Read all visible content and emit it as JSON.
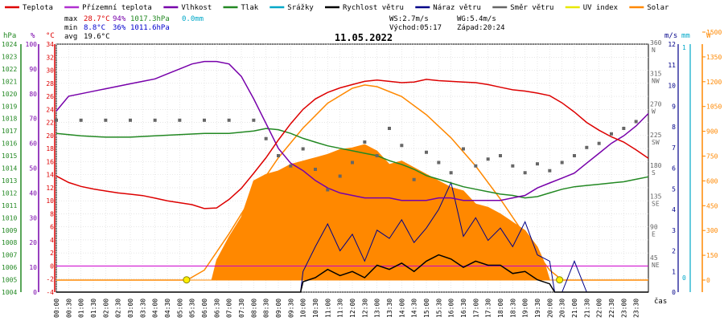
{
  "chart_data": {
    "type": "line",
    "title": "11.05.2022",
    "legend": {
      "placement": "top",
      "entries": [
        {
          "name": "Teplota",
          "color": "#dd0000"
        },
        {
          "name": "Přízemní teplota",
          "color": "#b030d0"
        },
        {
          "name": "Vlhkost",
          "color": "#7700aa"
        },
        {
          "name": "Tlak",
          "color": "#228822"
        },
        {
          "name": "Srážky",
          "color": "#00a8c8"
        },
        {
          "name": "Rychlost větru",
          "color": "#000000"
        },
        {
          "name": "Náraz větru",
          "color": "#000088"
        },
        {
          "name": "Směr větru",
          "color": "#666666"
        },
        {
          "name": "UV index",
          "color": "#e8e800"
        },
        {
          "name": "Solar",
          "color": "#ff8800"
        }
      ]
    },
    "stats": {
      "max_label": "max",
      "min_label": "min",
      "avg_label": "avg",
      "max_temp": "28.7°C",
      "max_hum": "94%",
      "max_press": "1017.3hPa",
      "max_rain": "0.0mm",
      "min_temp": "8.8°C",
      "min_hum": "36%",
      "min_press": "1011.6hPa",
      "avg_temp": "19.6°C",
      "ws": "WS:2.7m/s",
      "wg": "WG:5.4m/s",
      "sunrise": "Východ:05:17",
      "sunset": "Západ:20:24"
    },
    "x_axis": {
      "label": "čas",
      "ticks": [
        "00:00",
        "00:30",
        "01:00",
        "01:30",
        "02:00",
        "02:30",
        "03:00",
        "03:30",
        "04:00",
        "04:30",
        "05:00",
        "05:30",
        "06:00",
        "06:30",
        "07:00",
        "07:30",
        "08:00",
        "08:30",
        "09:00",
        "09:30",
        "10:00",
        "10:30",
        "11:00",
        "11:30",
        "12:00",
        "12:30",
        "13:00",
        "13:30",
        "14:00",
        "14:30",
        "15:00",
        "15:30",
        "16:00",
        "16:30",
        "17:00",
        "17:30",
        "18:00",
        "18:30",
        "19:00",
        "19:30",
        "20:00",
        "20:30",
        "21:00",
        "21:30",
        "22:00",
        "22:30",
        "23:00",
        "23:30"
      ]
    },
    "axes": {
      "pressure": {
        "unit": "hPa",
        "range": [
          1004,
          1024
        ],
        "ticks": [
          "1024",
          "1023",
          "1022",
          "1021",
          "1020",
          "1019",
          "1018",
          "1017",
          "1016",
          "1015",
          "1014",
          "1013",
          "1012",
          "1011",
          "1010",
          "1009",
          "1008",
          "1007",
          "1006",
          "1005",
          "1004"
        ]
      },
      "humidity": {
        "unit": "%",
        "range": [
          0,
          100
        ],
        "ticks": [
          "100",
          "90",
          "80",
          "70",
          "60",
          "50",
          "40",
          "30",
          "20",
          "10",
          "0"
        ]
      },
      "temperature": {
        "unit": "°C",
        "range": [
          -4,
          34
        ],
        "ticks": [
          "34",
          "32",
          "30",
          "28",
          "26",
          "24",
          "22",
          "20",
          "18",
          "16",
          "14",
          "12",
          "10",
          "8",
          "6",
          "4",
          "2",
          "0",
          "-2",
          "-4"
        ]
      },
      "wind_speed": {
        "unit": "m/s",
        "range": [
          0,
          12
        ],
        "ticks": [
          "12",
          "11",
          "10",
          "9",
          "8",
          "7",
          "6",
          "5",
          "4",
          "3",
          "2",
          "1",
          "0"
        ]
      },
      "wind_direction": {
        "ticks": [
          "360 N",
          "315 NW",
          "270 W",
          "225 SW",
          "180 S",
          "135 SE",
          "90 E",
          "45 NE"
        ]
      },
      "rain": {
        "unit": "mm",
        "range": [
          0,
          1
        ],
        "ticks": [
          "1",
          "0"
        ]
      },
      "solar": {
        "unit": "W",
        "range": [
          0,
          1500
        ],
        "ticks": [
          "1500",
          "1350",
          "1200",
          "1050",
          "900",
          "750",
          "600",
          "450",
          "300",
          "150",
          "0"
        ]
      }
    },
    "series": [
      {
        "name": "Teplota",
        "x": [
          0,
          0.5,
          1,
          1.5,
          2,
          2.5,
          3,
          3.5,
          4,
          4.5,
          5,
          5.5,
          6,
          6.5,
          7,
          7.5,
          8,
          8.5,
          9,
          9.5,
          10,
          10.5,
          11,
          11.5,
          12,
          12.5,
          13,
          13.5,
          14,
          14.5,
          15,
          15.5,
          16,
          16.5,
          17,
          17.5,
          18,
          18.5,
          19,
          19.5,
          20,
          20.5,
          21,
          21.5,
          22,
          22.5,
          23,
          23.5,
          24
        ],
        "values": [
          13.8,
          12.8,
          12.2,
          11.8,
          11.5,
          11.2,
          11,
          10.8,
          10.4,
          10,
          9.7,
          9.4,
          8.8,
          8.9,
          10.2,
          11.9,
          14.2,
          16.6,
          19.3,
          21.8,
          24,
          25.6,
          26.6,
          27.3,
          27.8,
          28.3,
          28.5,
          28.3,
          28.1,
          28.2,
          28.6,
          28.4,
          28.3,
          28.2,
          28.1,
          27.8,
          27.4,
          27,
          26.8,
          26.5,
          26.1,
          25,
          23.6,
          22,
          20.8,
          19.8,
          19,
          17.8,
          16.5
        ]
      },
      {
        "name": "Vlhkost",
        "x": [
          0,
          0.5,
          1,
          1.5,
          2,
          2.5,
          3,
          3.5,
          4,
          4.5,
          5,
          5.5,
          6,
          6.5,
          7,
          7.5,
          8,
          8.5,
          9,
          9.5,
          10,
          10.5,
          11,
          11.5,
          12,
          12.5,
          13,
          13.5,
          14,
          14.5,
          15,
          15.5,
          16,
          16.5,
          17,
          17.5,
          18,
          18.5,
          19,
          19.5,
          20,
          20.5,
          21,
          21.5,
          22,
          22.5,
          23,
          23.5,
          24
        ],
        "values": [
          73,
          79,
          80,
          81,
          82,
          83,
          84,
          85,
          86,
          88,
          90,
          92,
          93,
          93,
          92,
          87,
          78,
          68,
          58,
          52,
          49,
          45,
          42,
          40,
          39,
          38,
          38,
          38,
          37,
          37,
          37,
          38,
          38,
          37,
          37,
          37,
          37,
          38,
          39,
          42,
          44,
          46,
          48,
          52,
          56,
          60,
          63,
          67,
          72
        ]
      },
      {
        "name": "Tlak",
        "x": [
          0,
          1,
          2,
          3,
          4,
          5,
          6,
          7,
          8,
          8.5,
          9,
          9.5,
          10,
          10.5,
          11,
          11.5,
          12,
          12.5,
          13,
          13.5,
          14,
          14.5,
          15,
          15.5,
          16,
          16.5,
          17,
          17.5,
          18,
          18.5,
          19,
          19.5,
          20,
          20.5,
          21,
          21.5,
          22,
          22.5,
          23,
          23.5,
          24
        ],
        "values": [
          1016.8,
          1016.6,
          1016.5,
          1016.5,
          1016.6,
          1016.7,
          1016.8,
          1016.8,
          1017.0,
          1017.2,
          1017.1,
          1016.8,
          1016.4,
          1016.1,
          1015.8,
          1015.6,
          1015.4,
          1015.2,
          1015.0,
          1014.6,
          1014.3,
          1013.9,
          1013.4,
          1013.1,
          1012.8,
          1012.5,
          1012.3,
          1012.1,
          1011.9,
          1011.8,
          1011.6,
          1011.7,
          1012.0,
          1012.3,
          1012.5,
          1012.6,
          1012.7,
          1012.8,
          1012.9,
          1013.1,
          1013.3
        ]
      },
      {
        "name": "Solar",
        "x": [
          0,
          5.3,
          6,
          7,
          8,
          9,
          10,
          11,
          12,
          12.5,
          13,
          14,
          15,
          16,
          17,
          18,
          19,
          19.5,
          20,
          20.5,
          24
        ],
        "values": [
          0,
          0,
          60,
          280,
          520,
          740,
          920,
          1070,
          1160,
          1180,
          1170,
          1110,
          1000,
          860,
          690,
          490,
          270,
          160,
          60,
          0,
          0
        ]
      },
      {
        "name": "Solar (měřené)",
        "x": [
          0,
          6.3,
          6.5,
          7,
          7.5,
          8,
          8.5,
          9,
          9.5,
          10,
          10.5,
          11,
          11.5,
          12,
          12.5,
          13,
          13.5,
          14,
          14.5,
          15,
          15.5,
          16,
          16.5,
          17,
          17.5,
          18,
          18.5,
          19,
          19.5,
          19.8,
          20,
          24
        ],
        "values": [
          0,
          0,
          120,
          260,
          380,
          600,
          640,
          660,
          700,
          720,
          740,
          760,
          790,
          800,
          820,
          780,
          700,
          720,
          680,
          640,
          600,
          560,
          540,
          460,
          440,
          400,
          350,
          300,
          200,
          100,
          0,
          0
        ]
      },
      {
        "name": "Náraz větru",
        "x": [
          0,
          9.9,
          10,
          10.5,
          11,
          11.5,
          12,
          12.5,
          13,
          13.5,
          14,
          14.5,
          15,
          15.5,
          16,
          16.5,
          17,
          17.5,
          18,
          18.5,
          19,
          19.5,
          20,
          20.2,
          20.5,
          21,
          21.5,
          24
        ],
        "values": [
          0,
          0,
          1,
          2.2,
          3.3,
          2,
          2.8,
          1.5,
          3,
          2.6,
          3.5,
          2.4,
          3.1,
          4,
          5.3,
          2.7,
          3.6,
          2.5,
          3.1,
          2.2,
          3.4,
          1.8,
          1.5,
          0,
          0,
          1.5,
          0,
          0
        ]
      },
      {
        "name": "Rychlost větru",
        "x": [
          0,
          9.9,
          10,
          10.5,
          11,
          11.5,
          12,
          12.5,
          13,
          13.5,
          14,
          14.5,
          15,
          15.5,
          16,
          16.5,
          17,
          17.5,
          18,
          18.5,
          19,
          19.5,
          20,
          20.2,
          24
        ],
        "values": [
          0,
          0,
          0.5,
          0.7,
          1.1,
          0.8,
          1.0,
          0.7,
          1.3,
          1.1,
          1.4,
          1.0,
          1.5,
          1.8,
          1.6,
          1.2,
          1.5,
          1.3,
          1.3,
          0.9,
          1.0,
          0.6,
          0.4,
          0,
          0
        ]
      },
      {
        "name": "Směr větru",
        "x": [
          0,
          1,
          2,
          3,
          4,
          5,
          6,
          7,
          8,
          8.5,
          9,
          9.5,
          10,
          10.5,
          11,
          11.5,
          12,
          12.5,
          13,
          13.5,
          14,
          14.5,
          15,
          15.5,
          16,
          16.5,
          17,
          17.5,
          18,
          18.5,
          19,
          19.5,
          20,
          20.5,
          21,
          21.5,
          22,
          22.5,
          23,
          23.5
        ],
        "values": [
          252,
          252,
          252,
          252,
          252,
          252,
          252,
          252,
          252,
          225,
          200,
          185,
          210,
          180,
          150,
          170,
          190,
          220,
          200,
          240,
          215,
          165,
          205,
          190,
          175,
          210,
          185,
          195,
          200,
          185,
          175,
          188,
          178,
          190,
          200,
          212,
          218,
          232,
          240,
          250
        ]
      }
    ]
  }
}
